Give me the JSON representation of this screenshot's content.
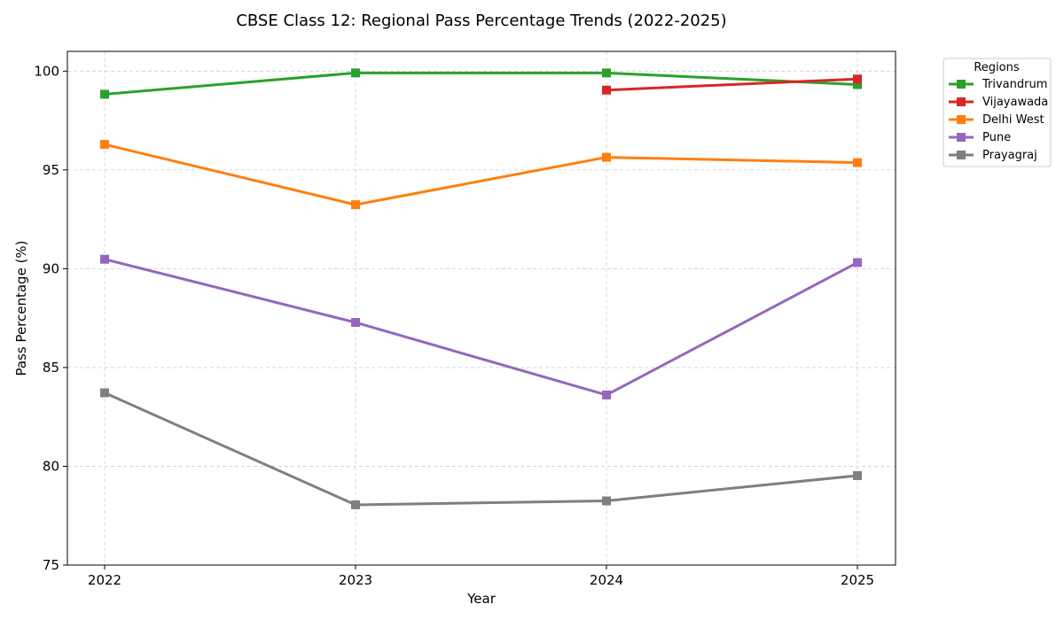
{
  "chart_data": {
    "type": "line",
    "title": "CBSE Class 12: Regional Pass Percentage Trends (2022-2025)",
    "xlabel": "Year",
    "ylabel": "Pass Percentage (%)",
    "categories": [
      "2022",
      "2023",
      "2024",
      "2025"
    ],
    "ylim": [
      75,
      101
    ],
    "yticks": [
      75,
      80,
      85,
      90,
      95,
      100
    ],
    "grid": true,
    "legend": {
      "title": "Regions",
      "placement": "outside-top-right"
    },
    "series": [
      {
        "name": "Trivandrum",
        "color": "#2ca02c",
        "values": [
          98.83,
          99.91,
          99.91,
          99.32
        ]
      },
      {
        "name": "Vijayawada",
        "color": "#d62728",
        "values": [
          null,
          null,
          99.04,
          99.6
        ]
      },
      {
        "name": "Delhi West",
        "color": "#ff7f0e",
        "values": [
          96.29,
          93.24,
          95.64,
          95.37
        ]
      },
      {
        "name": "Pune",
        "color": "#9467bd",
        "values": [
          90.48,
          87.28,
          83.61,
          90.31
        ]
      },
      {
        "name": "Prayagraj",
        "color": "#7f7f7f",
        "values": [
          83.72,
          78.05,
          78.25,
          79.53
        ]
      }
    ]
  }
}
